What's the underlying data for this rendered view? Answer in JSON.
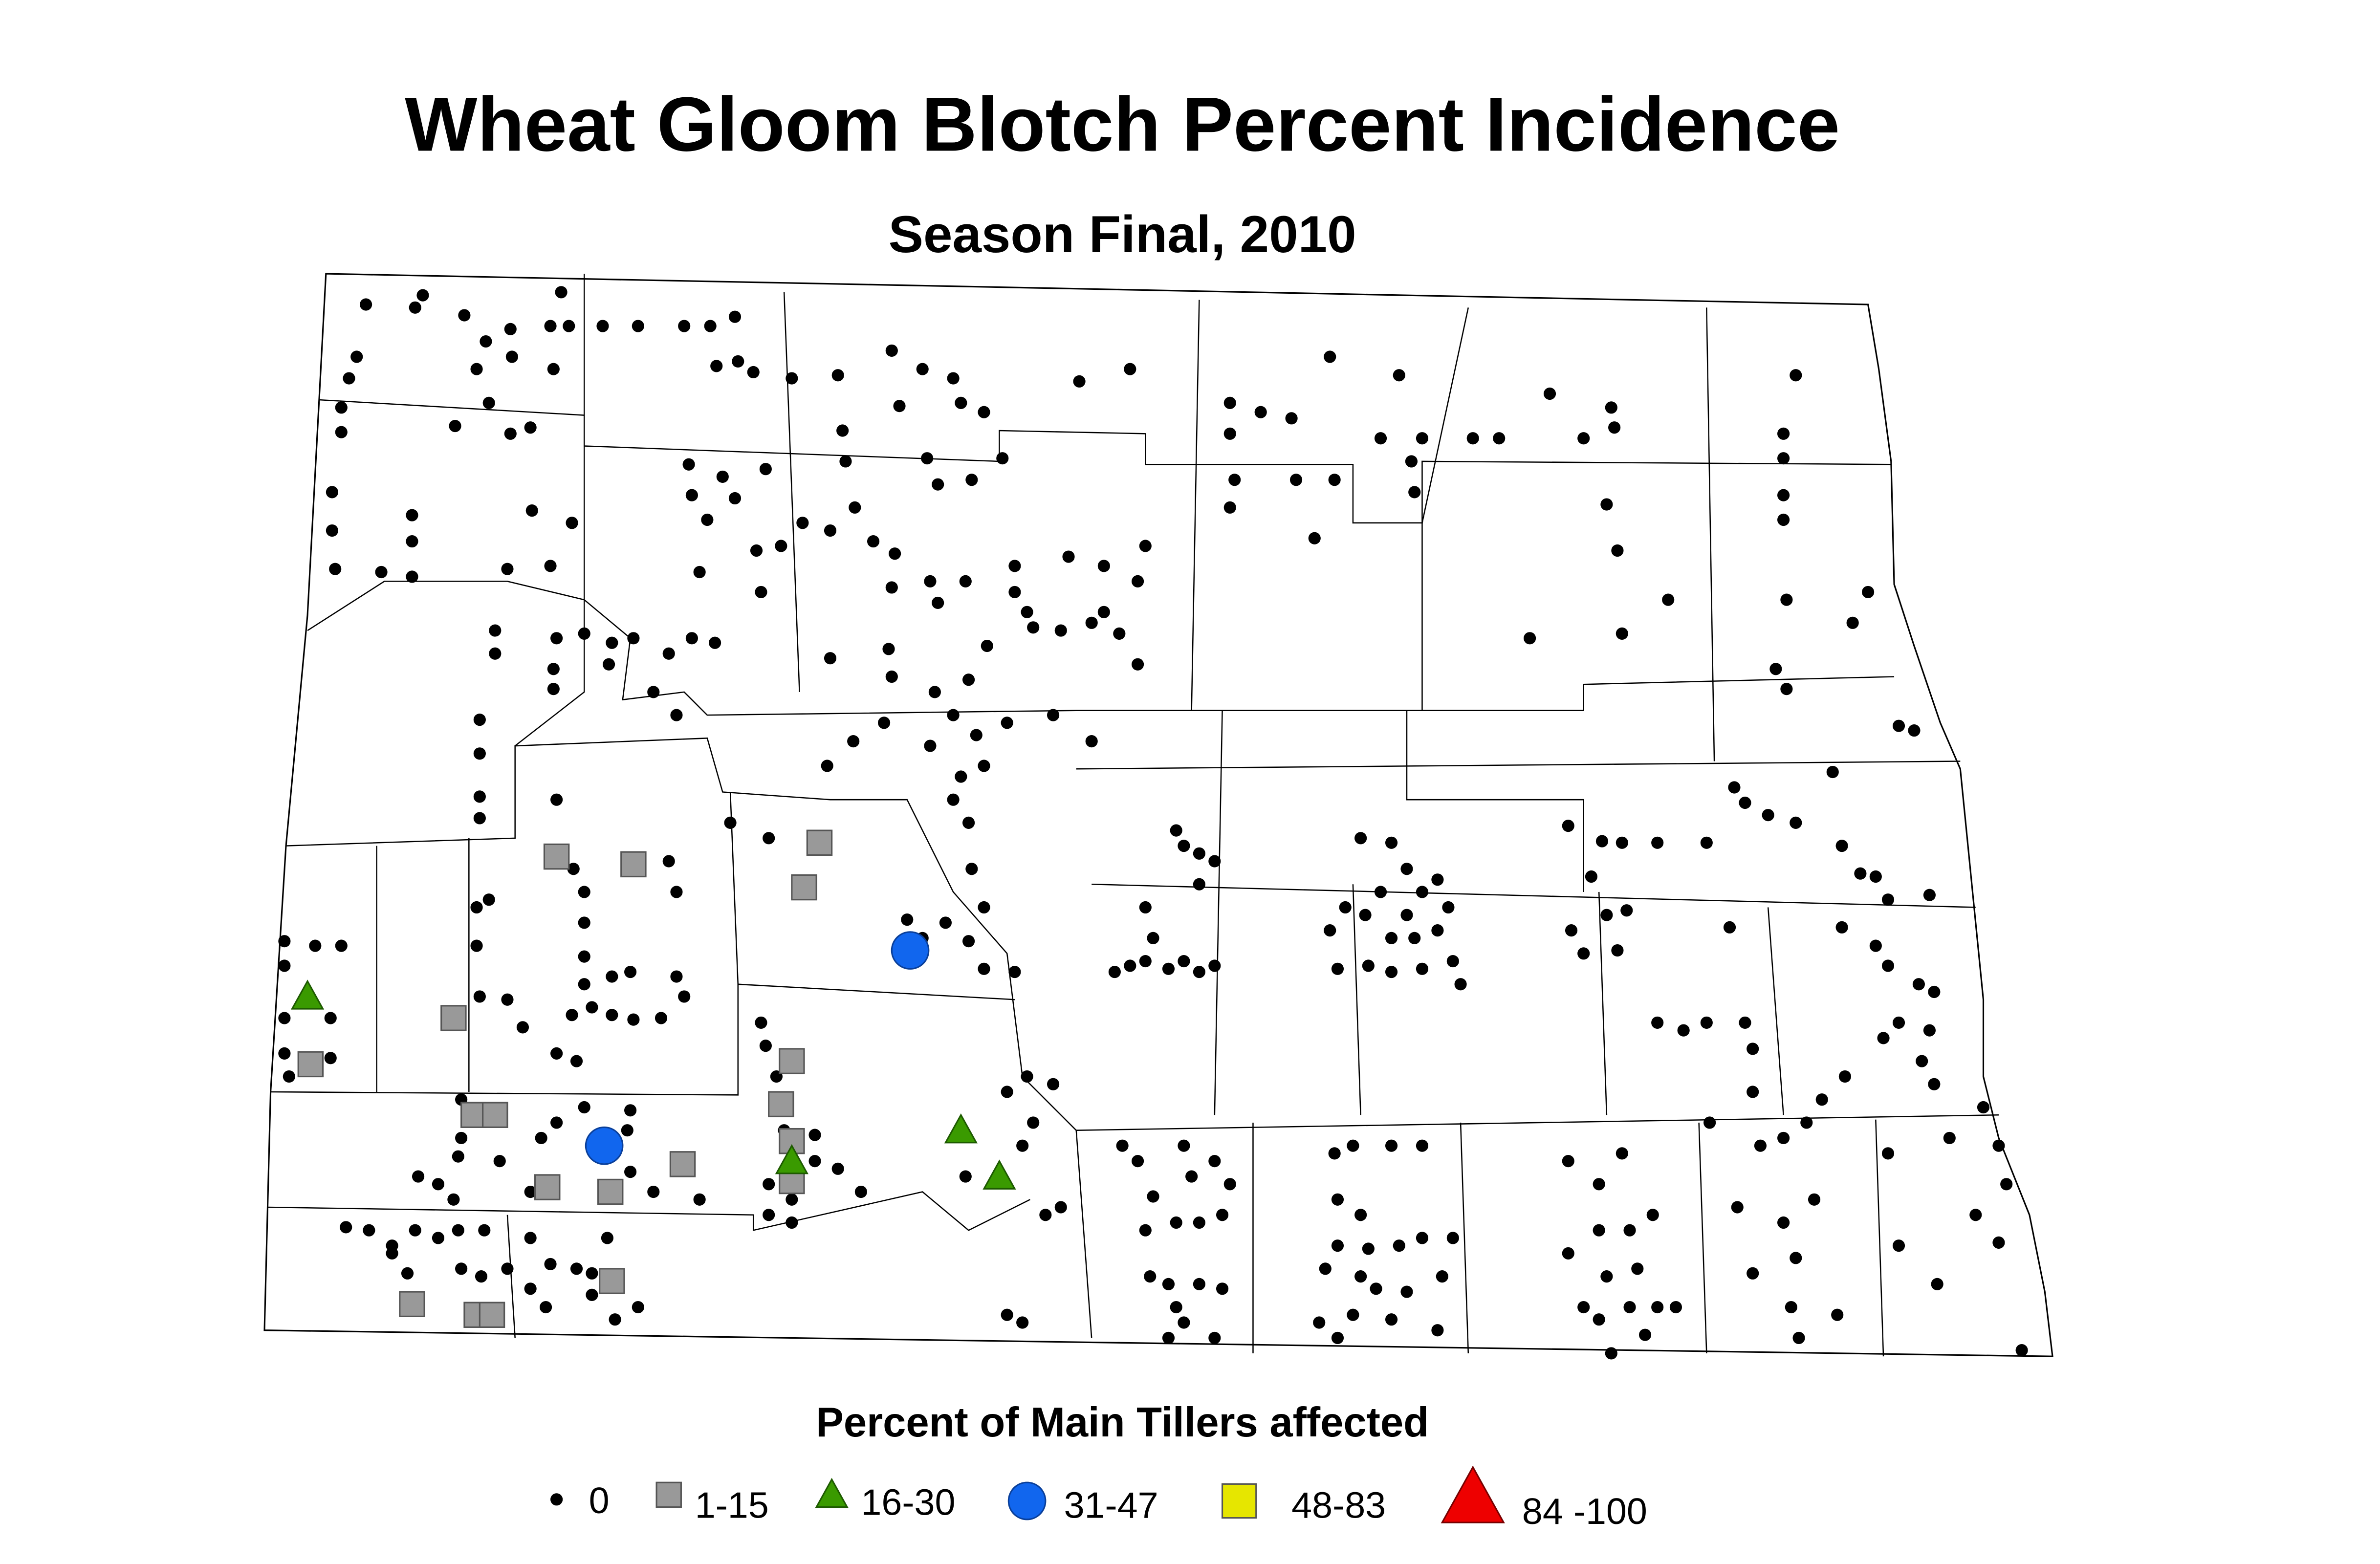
{
  "title": "Wheat Gloom Blotch Percent Incidence",
  "subtitle": "Season Final, 2010",
  "legend": {
    "title": "Percent of Main Tillers affected",
    "items": [
      {
        "label": "0"
      },
      {
        "label": "1-15"
      },
      {
        "label": "16-30"
      },
      {
        "label": "31-47"
      },
      {
        "label": "48-83"
      },
      {
        "label": "84 -100"
      }
    ]
  }
}
